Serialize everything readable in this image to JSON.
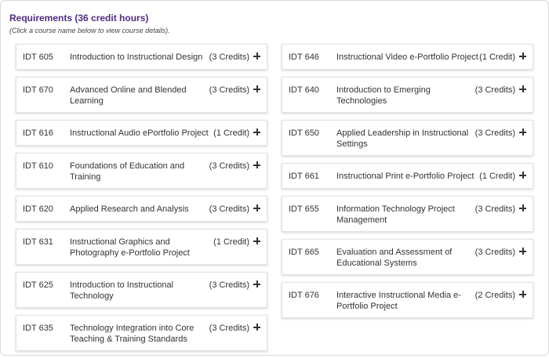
{
  "header": {
    "title": "Requirements (36 credit hours)",
    "subtitle": "(Click a course name below to view course details)."
  },
  "left_courses": [
    {
      "code": "IDT 605",
      "name": "Introduction to Instructional Design",
      "credits": "(3 Credits)"
    },
    {
      "code": "IDT 670",
      "name": "Advanced Online and Blended Learning",
      "credits": "(3 Credits)"
    },
    {
      "code": "IDT 616",
      "name": "Instructional Audio ePortfolio Project",
      "credits": "(1 Credit)"
    },
    {
      "code": "IDT 610",
      "name": "Foundations of Education and Training",
      "credits": "(3 Credits)"
    },
    {
      "code": "IDT 620",
      "name": "Applied Research and Analysis",
      "credits": "(3 Credits)"
    },
    {
      "code": "IDT 631",
      "name": "Instructional Graphics and Photography e-Portfolio Project",
      "credits": "(1 Credit)"
    },
    {
      "code": "IDT 625",
      "name": "Introduction to Instructional Technology",
      "credits": "(3 Credits)"
    },
    {
      "code": "IDT 635",
      "name": "Technology Integration into Core Teaching & Training Standards",
      "credits": "(3 Credits)"
    }
  ],
  "right_courses": [
    {
      "code": "IDT 646",
      "name": "Instructional Video e-Portfolio Project",
      "credits": "(1 Credit)"
    },
    {
      "code": "IDT 640",
      "name": "Introduction to Emerging Technologies",
      "credits": "(3 Credits)"
    },
    {
      "code": "IDT 650",
      "name": "Applied Leadership in Instructional Settings",
      "credits": "(3 Credits)"
    },
    {
      "code": "IDT 661",
      "name": "Instructional Print e-Portfolio Project",
      "credits": "(1 Credit)"
    },
    {
      "code": "IDT 655",
      "name": "Information Technology Project Management",
      "credits": "(3 Credits)"
    },
    {
      "code": "IDT 665",
      "name": "Evaluation and Assessment of Educational Systems",
      "credits": "(3 Credits)"
    },
    {
      "code": "IDT 676",
      "name": "Interactive Instructional Media e-Portfolio Project",
      "credits": "(2 Credits)"
    }
  ],
  "icons": {
    "expand": "plus-icon"
  }
}
